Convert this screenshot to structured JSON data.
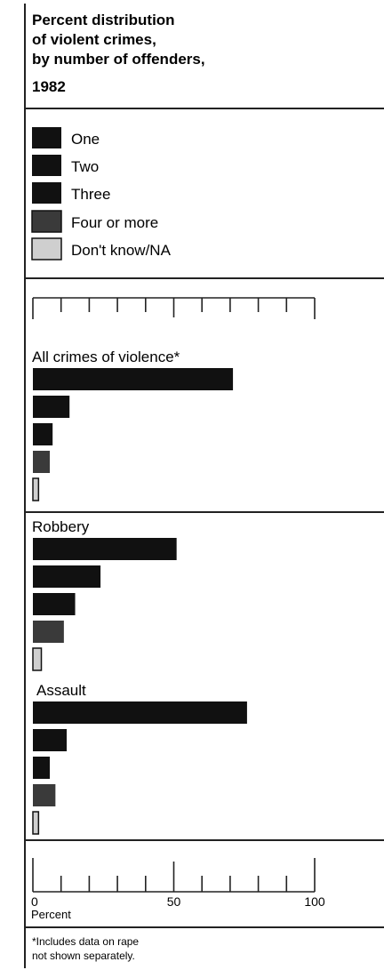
{
  "colors": {
    "one": "#111111",
    "two": "#111111",
    "three": "#111111",
    "four_or_more": "#3a3a3a",
    "dont_know": "#cfcfcf",
    "frame": "#222222"
  },
  "title_lines": [
    "Percent distribution",
    "of violent crimes,",
    "by number of offenders,",
    "1982"
  ],
  "legend": [
    "One",
    "Two",
    "Three",
    "Four or more",
    "Don't know/NA"
  ],
  "axis": {
    "label": "Percent",
    "ticks": [
      "0",
      "50",
      "100"
    ]
  },
  "footnote_lines": [
    "*Includes data on rape",
    "not shown separately."
  ],
  "chart_data": {
    "type": "bar",
    "orientation": "horizontal",
    "xlim": [
      0,
      100
    ],
    "series_names": [
      "One",
      "Two",
      "Three",
      "Four or more",
      "Don't know/NA"
    ],
    "groups": [
      {
        "name": "All crimes of violence*",
        "values": [
          71,
          13,
          7,
          6,
          2
        ]
      },
      {
        "name": "Robbery",
        "values": [
          51,
          24,
          15,
          11,
          3
        ]
      },
      {
        "name": "Assault",
        "values": [
          76,
          12,
          6,
          8,
          2
        ]
      }
    ]
  }
}
